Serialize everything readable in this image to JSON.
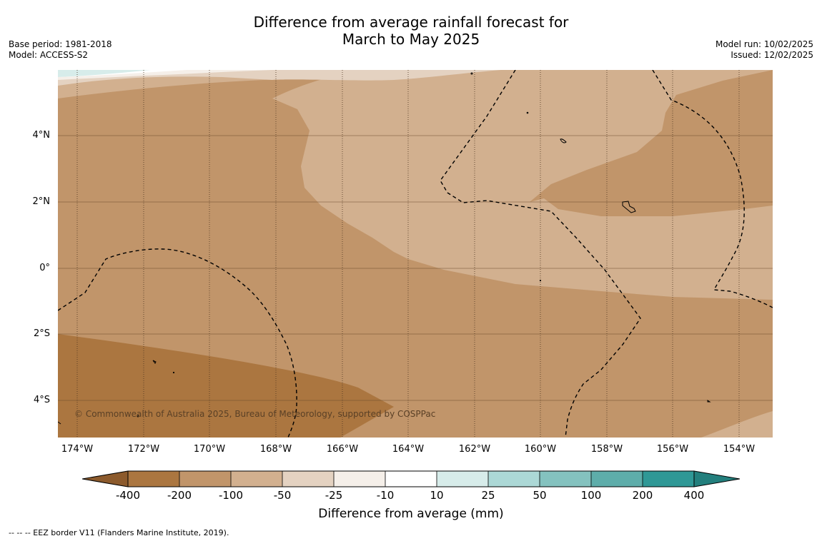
{
  "title_line1": "Difference from average rainfall forecast for",
  "title_line2": "March to May 2025",
  "base_period": "Base period: 1981-2018",
  "model": "Model: ACCESS-S2",
  "model_run": "Model run: 10/02/2025",
  "issued": "Issued: 12/02/2025",
  "lat_labels": [
    "4°N",
    "2°N",
    "0°",
    "2°S",
    "4°S"
  ],
  "lon_labels": [
    "174°W",
    "172°W",
    "170°W",
    "168°W",
    "166°W",
    "164°W",
    "162°W",
    "160°W",
    "158°W",
    "156°W",
    "154°W"
  ],
  "copyright": "© Commonwealth of Australia 2025, Bureau of Meteorology, supported by COSPPac",
  "colorbar": {
    "ticks": [
      "-400",
      "-200",
      "-100",
      "-50",
      "-25",
      "-10",
      "10",
      "25",
      "50",
      "100",
      "200",
      "400"
    ],
    "colors": [
      "#8c5a2c",
      "#ab7640",
      "#c1956a",
      "#d2b08f",
      "#e4d2c1",
      "#f5efe9",
      "#ffffff",
      "#d7ecea",
      "#acd8d6",
      "#84c2bf",
      "#5eadaa",
      "#2f9896",
      "#237f7d"
    ],
    "label": "Difference from average (mm)"
  },
  "footer": "--  --  -- EEZ border V11 (Flanders Marine Institute, 2019)."
}
